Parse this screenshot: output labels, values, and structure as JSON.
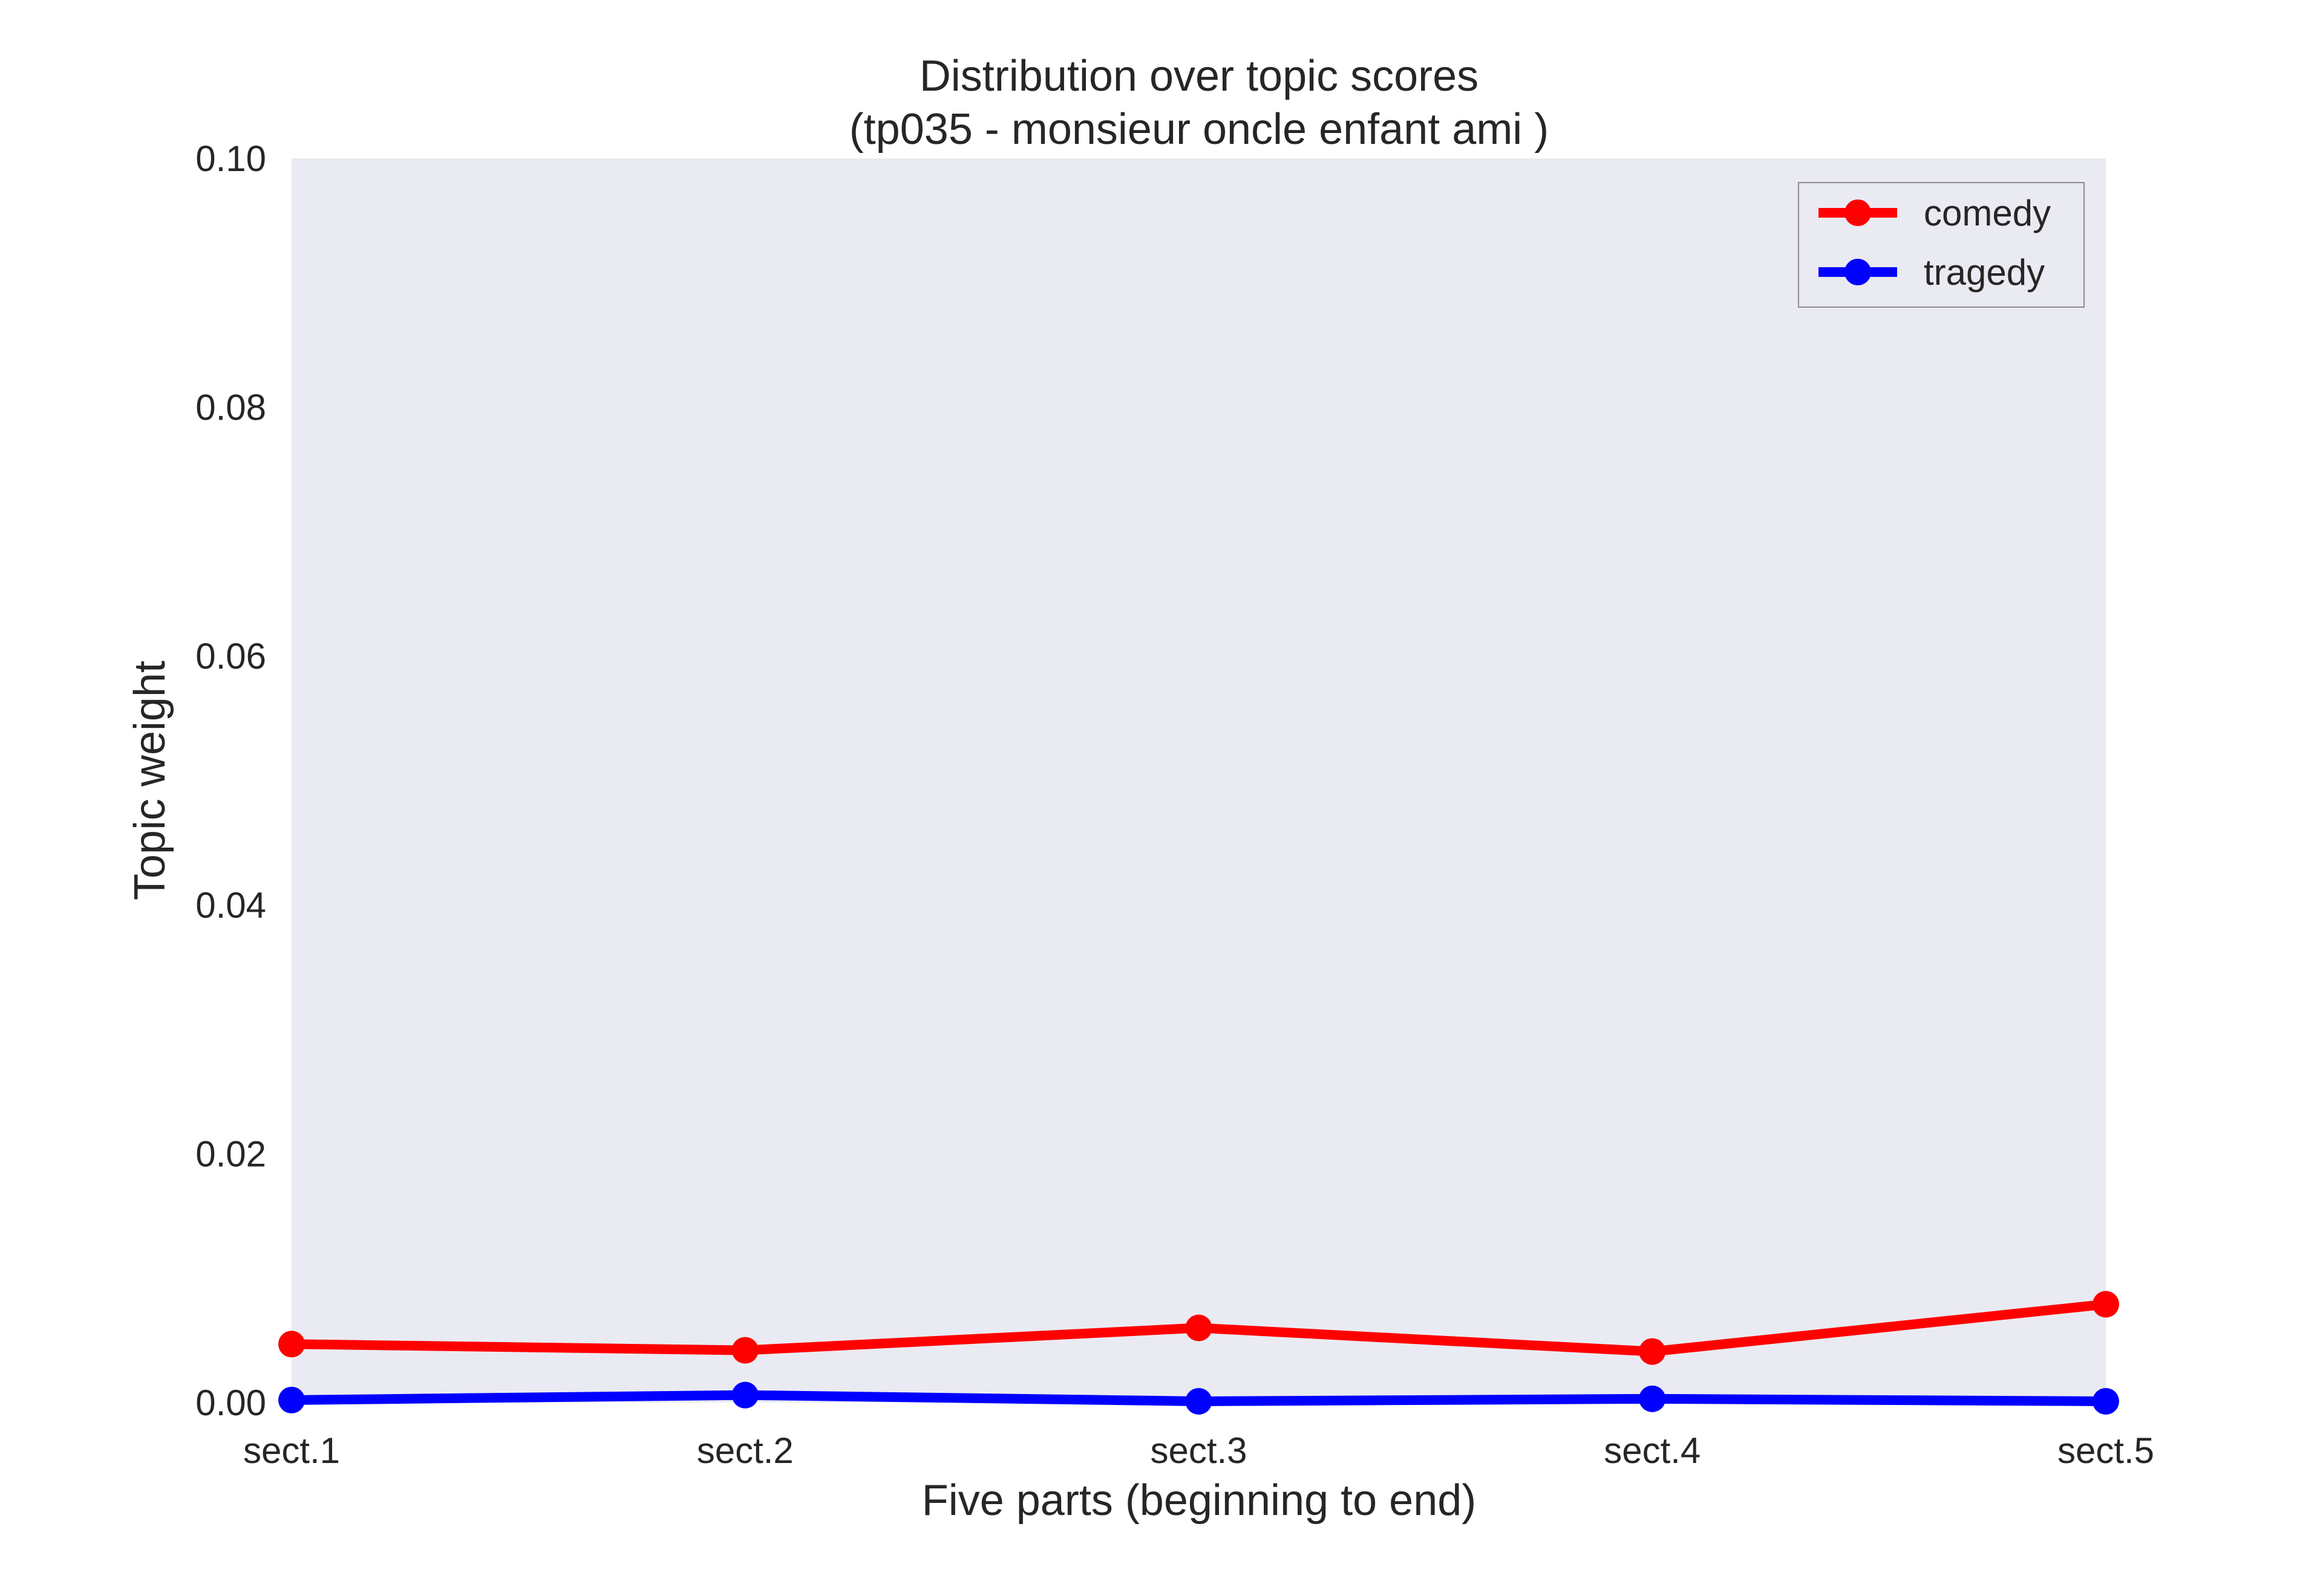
{
  "chart_data": {
    "type": "line",
    "title": "Distribution over topic scores",
    "subtitle": "(tp035 - monsieur oncle enfant ami )",
    "xlabel": "Five parts (beginning to end)",
    "ylabel": "Topic weight",
    "categories": [
      "sect.1",
      "sect.2",
      "sect.3",
      "sect.4",
      "sect.5"
    ],
    "ylim": [
      0,
      0.1
    ],
    "yticks": [
      "0.00",
      "0.02",
      "0.04",
      "0.06",
      "0.08",
      "0.10"
    ],
    "grid": false,
    "legend_position": "top-right",
    "background_color": "#EAEAF2",
    "series": [
      {
        "name": "comedy",
        "color": "#FF0000",
        "values": [
          0.0047,
          0.0042,
          0.006,
          0.0041,
          0.0079
        ]
      },
      {
        "name": "tragedy",
        "color": "#0000FF",
        "values": [
          0.0002,
          0.0006,
          0.0001,
          0.0003,
          0.0001
        ]
      }
    ]
  }
}
